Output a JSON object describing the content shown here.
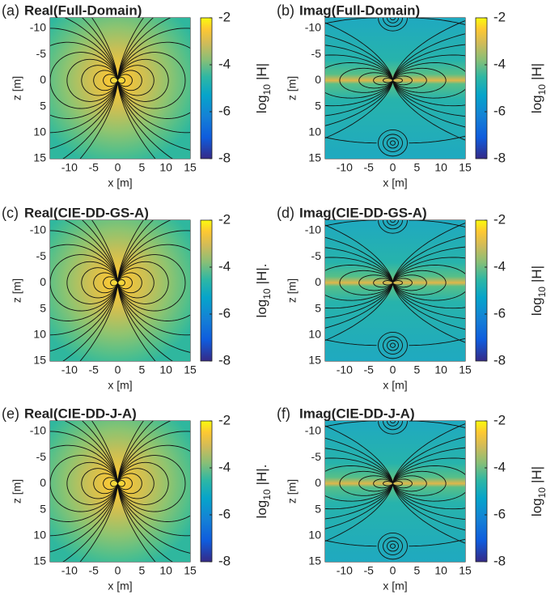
{
  "chart_data": [
    {
      "type": "field",
      "panel": "(a)",
      "title": "Real(Full-Domain)",
      "xlabel": "x [m]",
      "ylabel": "z [m]",
      "xlim": [
        -14,
        15
      ],
      "ylim": [
        -12,
        15
      ],
      "y_reversed": true,
      "xticks": [
        -10,
        -5,
        0,
        5,
        10,
        15
      ],
      "yticks": [
        -10,
        -5,
        0,
        5,
        10,
        15
      ],
      "colorbar": {
        "lim": [
          -8,
          -2
        ],
        "ticks": [
          -2,
          -4,
          -6,
          -8
        ],
        "label": "log",
        "label_sub": "10",
        "label_tail": "|H|"
      }
    },
    {
      "type": "field",
      "panel": "(b)",
      "title": "Imag(Full-Domain)",
      "xlabel": "x [m]",
      "ylabel": "z [m]",
      "xlim": [
        -14,
        15
      ],
      "ylim": [
        -12,
        15
      ],
      "y_reversed": true,
      "xticks": [
        -10,
        -5,
        0,
        5,
        10,
        15
      ],
      "yticks": [
        -10,
        -5,
        0,
        5,
        10,
        15
      ],
      "colorbar": {
        "lim": [
          -8,
          -2
        ],
        "ticks": [
          -2,
          -4,
          -6,
          -8
        ],
        "label": "log",
        "label_sub": "10",
        "label_tail": "|H|"
      }
    },
    {
      "type": "field",
      "panel": "(c)",
      "title": "Real(CIE-DD-GS-A)",
      "xlabel": "x [m]",
      "ylabel": "z [m]",
      "xlim": [
        -14,
        15
      ],
      "ylim": [
        -12,
        15
      ],
      "y_reversed": true,
      "xticks": [
        -10,
        -5,
        0,
        5,
        10,
        15
      ],
      "yticks": [
        -10,
        -5,
        0,
        5,
        10,
        15
      ],
      "colorbar": {
        "lim": [
          -8,
          -2
        ],
        "ticks": [
          -2,
          -4,
          -6,
          -8
        ],
        "label": "log",
        "label_sub": "10",
        "label_tail": "|H|."
      }
    },
    {
      "type": "field",
      "panel": "(d)",
      "title": "Imag(CIE-DD-GS-A)",
      "xlabel": "x [m]",
      "ylabel": "z [m]",
      "xlim": [
        -14,
        15
      ],
      "ylim": [
        -12,
        15
      ],
      "y_reversed": true,
      "xticks": [
        -10,
        -5,
        0,
        5,
        10,
        15
      ],
      "yticks": [
        -10,
        -5,
        0,
        5,
        10,
        15
      ],
      "colorbar": {
        "lim": [
          -8,
          -2
        ],
        "ticks": [
          -2,
          -4,
          -6,
          -8
        ],
        "label": "log",
        "label_sub": "10",
        "label_tail": "|H|"
      }
    },
    {
      "type": "field",
      "panel": "(e)",
      "title": "Real(CIE-DD-J-A)",
      "xlabel": "x [m]",
      "ylabel": "z [m]",
      "xlim": [
        -14,
        15
      ],
      "ylim": [
        -12,
        15
      ],
      "y_reversed": true,
      "xticks": [
        -10,
        -5,
        0,
        5,
        10,
        15
      ],
      "yticks": [
        -10,
        -5,
        0,
        5,
        10,
        15
      ],
      "colorbar": {
        "lim": [
          -8,
          -2
        ],
        "ticks": [
          -2,
          -4,
          -6,
          -8
        ],
        "label": "log",
        "label_sub": "10",
        "label_tail": "|H|."
      }
    },
    {
      "type": "field",
      "panel": "(f)",
      "title": "Imag(CIE-DD-J-A)",
      "xlabel": "x [m]",
      "ylabel": "z [m]",
      "xlim": [
        -14,
        15
      ],
      "ylim": [
        -12,
        15
      ],
      "y_reversed": true,
      "xticks": [
        -10,
        -5,
        0,
        5,
        10,
        15
      ],
      "yticks": [
        -10,
        -5,
        0,
        5,
        10,
        15
      ],
      "colorbar": {
        "lim": [
          -8,
          -2
        ],
        "ticks": [
          -2,
          -4,
          -6,
          -8
        ],
        "label": "log",
        "label_sub": "10",
        "label_tail": "|H|"
      }
    }
  ]
}
